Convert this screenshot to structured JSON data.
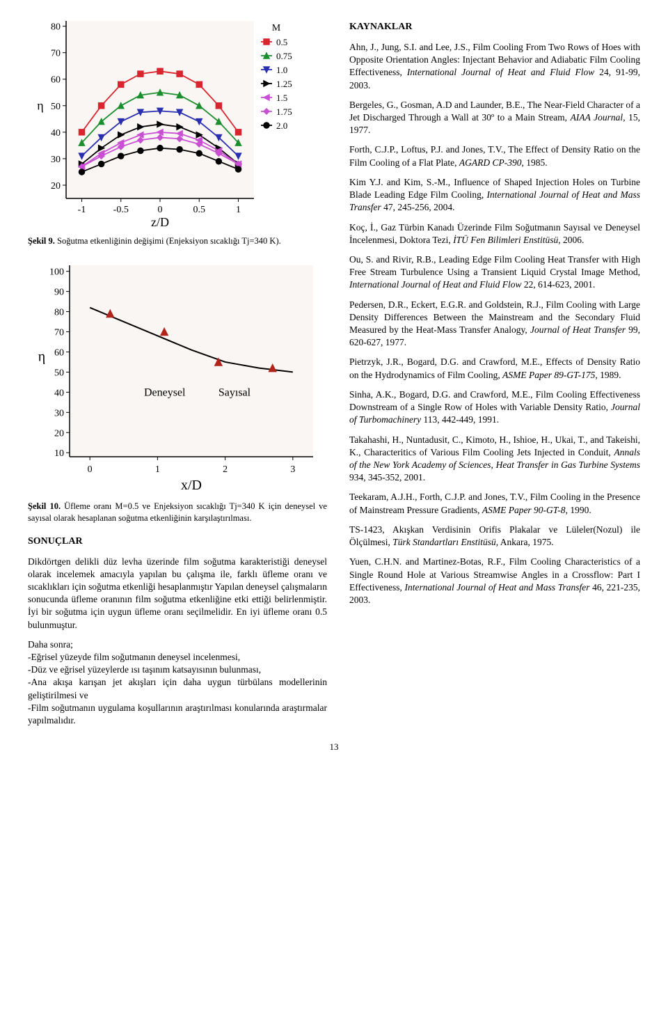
{
  "left": {
    "chart1": {
      "type": "line-multi",
      "xlabel": "z/D",
      "ylabel": "η",
      "xlim": [
        -1.2,
        1.2
      ],
      "ylim": [
        15,
        82
      ],
      "xticks": [
        -1,
        -0.5,
        0,
        0.5,
        1
      ],
      "yticks": [
        20,
        30,
        40,
        50,
        60,
        70,
        80
      ],
      "background_color": "#faf6f3",
      "axis_color": "#000000",
      "tick_color": "#000000",
      "plot_border_left": true,
      "plot_border_bottom": true,
      "label_fontsize": 18,
      "tick_fontsize": 14,
      "legend_title": "M",
      "legend_items": [
        {
          "label": "0.5",
          "color": "#d8252e",
          "marker": "square"
        },
        {
          "label": "0.75",
          "color": "#1b8f2f",
          "marker": "triangle-up"
        },
        {
          "label": "1.0",
          "color": "#2a2fb0",
          "marker": "triangle-down"
        },
        {
          "label": "1.25",
          "color": "#000000",
          "marker": "triangle-right"
        },
        {
          "label": "1.5",
          "color": "#c94fd3",
          "marker": "triangle-left"
        },
        {
          "label": "1.75",
          "color": "#c94fd3",
          "marker": "diamond"
        },
        {
          "label": "2.0",
          "color": "#000000",
          "marker": "circle"
        }
      ],
      "series": [
        {
          "name": "M0.5",
          "color": "#d8252e",
          "marker": "square",
          "x": [
            -1,
            -0.75,
            -0.5,
            -0.25,
            0,
            0.25,
            0.5,
            0.75,
            1
          ],
          "y": [
            40,
            50,
            58,
            62,
            63,
            62,
            58,
            50,
            40
          ]
        },
        {
          "name": "M0.75",
          "color": "#1b8f2f",
          "marker": "triangle-up",
          "x": [
            -1,
            -0.75,
            -0.5,
            -0.25,
            0,
            0.25,
            0.5,
            0.75,
            1
          ],
          "y": [
            36,
            44,
            50,
            54,
            55,
            54,
            50,
            44,
            36
          ]
        },
        {
          "name": "M1.0",
          "color": "#2a2fb0",
          "marker": "triangle-down",
          "x": [
            -1,
            -0.75,
            -0.5,
            -0.25,
            0,
            0.25,
            0.5,
            0.75,
            1
          ],
          "y": [
            31,
            38,
            44,
            47.5,
            48,
            47.5,
            44,
            38,
            31
          ]
        },
        {
          "name": "M1.25",
          "color": "#000000",
          "marker": "triangle-right",
          "x": [
            -1,
            -0.75,
            -0.5,
            -0.25,
            0,
            0.25,
            0.5,
            0.75,
            1
          ],
          "y": [
            28,
            34,
            39,
            42,
            43,
            42,
            39,
            34,
            28
          ]
        },
        {
          "name": "M1.5",
          "color": "#c94fd3",
          "marker": "triangle-left",
          "x": [
            -1,
            -0.75,
            -0.5,
            -0.25,
            0,
            0.25,
            0.5,
            0.75,
            1
          ],
          "y": [
            27,
            32,
            36,
            39,
            40,
            39.5,
            37,
            33,
            28
          ]
        },
        {
          "name": "M1.75",
          "color": "#c94fd3",
          "marker": "diamond",
          "x": [
            -1,
            -0.75,
            -0.5,
            -0.25,
            0,
            0.25,
            0.5,
            0.75,
            1
          ],
          "y": [
            27,
            31,
            34.5,
            37,
            38,
            37.5,
            35.5,
            32,
            28
          ]
        },
        {
          "name": "M2.0",
          "color": "#000000",
          "marker": "circle",
          "x": [
            -1,
            -0.75,
            -0.5,
            -0.25,
            0,
            0.25,
            0.5,
            0.75,
            1
          ],
          "y": [
            25,
            28,
            31,
            33,
            34,
            33.5,
            32,
            29,
            26
          ]
        }
      ]
    },
    "caption1_bold": "Şekil 9.",
    "caption1_rest": " Soğutma etkenliğinin değişimi (Enjeksiyon sıcaklığı Tj=340 K).",
    "chart2": {
      "type": "line",
      "xlabel": "x/D",
      "ylabel": "η",
      "xlim": [
        -0.3,
        3.3
      ],
      "ylim": [
        8,
        103
      ],
      "xticks": [
        0,
        1,
        2,
        3
      ],
      "yticks": [
        10,
        20,
        30,
        40,
        50,
        60,
        70,
        80,
        90,
        100
      ],
      "background_color": "#faf6f3",
      "axis_color": "#000000",
      "label_fontsize": 20,
      "tick_fontsize": 14,
      "label_deneysel": "Deneysel",
      "label_sayisal": "Sayısal",
      "series": [
        {
          "name": "Sayısal",
          "color": "#000000",
          "marker": null,
          "x": [
            0,
            0.5,
            1,
            1.5,
            2,
            2.5,
            3
          ],
          "y": [
            82,
            75,
            68,
            61,
            55,
            52,
            50
          ]
        },
        {
          "name": "Deneysel",
          "color": "#b0241b",
          "marker": "triangle-up",
          "line": false,
          "x": [
            0.3,
            1.1,
            1.9,
            2.7
          ],
          "y": [
            79,
            70,
            55,
            52
          ]
        }
      ]
    },
    "caption2_bold": "Şekil 10.",
    "caption2_rest": " Üfleme oranı M=0.5 ve Enjeksiyon sıcaklığı Tj=340 K için deneysel ve sayısal olarak hesaplanan soğutma etkenliğinin karşılaştırılması.",
    "sonuclar_title": "SONUÇLAR",
    "sonuclar_p1": "Dikdörtgen delikli düz levha üzerinde film soğutma karakteristiği deneysel olarak incelemek amacıyla yapılan bu çalışma ile, farklı üfleme oranı ve sıcaklıkları için soğutma etkenliği hesaplanmıştır Yapılan deneysel çalışmaların sonucunda üfleme oranının film soğutma etkenliğine etki ettiği belirlenmiştir. İyi bir soğutma için uygun üfleme oranı seçilmelidir. En iyi üfleme oranı 0.5 bulunmuştur.",
    "sonuclar_p2_lead": "Daha sonra;",
    "sonuclar_list": [
      "-Eğrisel yüzeyde film soğutmanın deneysel incelenmesi,",
      "-Düz ve eğrisel yüzeylerde ısı taşınım katsayısının bulunması,",
      "-Ana akışa karışan jet akışları için daha uygun türbülans modellerinin geliştirilmesi ve",
      "-Film soğutmanın uygulama koşullarının araştırılması konularında araştırmalar yapılmalıdır."
    ]
  },
  "right": {
    "kaynaklar_title": "KAYNAKLAR",
    "refs": [
      {
        "plain_a": "Ahn, J., Jung, S.I. and Lee, J.S., Film Cooling From Two Rows of Hoes with Opposite Orientation Angles: Injectant Behavior and Adiabatic Film Cooling Effectiveness, ",
        "italic": "International Journal of Heat and Fluid Flow",
        "plain_b": " 24, 91-99, 2003."
      },
      {
        "plain_a": "Bergeles, G., Gosman, A.D and Launder, B.E., The Near-Field Character of a Jet Discharged Through a Wall at 30º to a Main Stream, ",
        "italic": "AIAA Journal",
        "plain_b": ", 15, 1977."
      },
      {
        "plain_a": "Forth, C.J.P., Loftus, P.J. and Jones, T.V., The Effect of Density Ratio on the Film Cooling of a Flat Plate, ",
        "italic": "AGARD CP-390",
        "plain_b": ", 1985."
      },
      {
        "plain_a": "Kim Y.J. and Kim, S.-M., Influence of Shaped Injection Holes on Turbine Blade Leading Edge Film Cooling, ",
        "italic": "International Journal of Heat and Mass Transfer",
        "plain_b": " 47, 245-256, 2004."
      },
      {
        "plain_a": "Koç, İ., Gaz Türbin Kanadı Üzerinde Film Soğutmanın Sayısal ve Deneysel İncelenmesi, Doktora Tezi, ",
        "italic": "İTÜ Fen Bilimleri Enstitüsü",
        "plain_b": ", 2006."
      },
      {
        "plain_a": "Ou, S. and Rivir, R.B., Leading Edge Film Cooling Heat Transfer with High Free Stream Turbulence Using a Transient Liquid Crystal Image Method, ",
        "italic": "International Journal of Heat and Fluid Flow",
        "plain_b": " 22, 614-623, 2001."
      },
      {
        "plain_a": "Pedersen, D.R., Eckert, E.G.R. and Goldstein, R.J., Film Cooling with Large Density Differences Between the Mainstream and the Secondary Fluid Measured by the Heat-Mass Transfer Analogy, ",
        "italic": "Journal of Heat Transfer",
        "plain_b": " 99, 620-627, 1977."
      },
      {
        "plain_a": "Pietrzyk, J.R., Bogard, D.G. and Crawford, M.E., Effects of Density Ratio on the Hydrodynamics of Film Cooling, ",
        "italic": "ASME Paper 89-GT-175",
        "plain_b": ", 1989."
      },
      {
        "plain_a": "Sinha, A.K., Bogard, D.G. and Crawford, M.E., Film Cooling Effectiveness Downstream of a Single Row of Holes with Variable Density Ratio, ",
        "italic": "Journal of Turbomachinery",
        "plain_b": " 113, 442-449, 1991."
      },
      {
        "plain_a": "Takahashi, H., Nuntadusit, C., Kimoto, H., Ishioe, H., Ukai, T., and Takeishi, K., Characteritics of Various Film Cooling Jets Injected in Conduit, ",
        "italic": "Annals of the New York Academy of Sciences, Heat Transfer in Gas Turbine Systems",
        "plain_b": " 934, 345-352, 2001."
      },
      {
        "plain_a": "Teekaram, A.J.H., Forth, C.J.P. and Jones, T.V., Film Cooling in the Presence of Mainstream Pressure Gradients, ",
        "italic": "ASME Paper 90-GT-8",
        "plain_b": ", 1990."
      },
      {
        "plain_a": "TS-1423, Akışkan Verdisinin Orifis Plakalar ve Lüleler(Nozul) ile Ölçülmesi, ",
        "italic": "Türk Standartları Enstitüsü",
        "plain_b": ", Ankara, 1975."
      },
      {
        "plain_a": "Yuen, C.H.N. and Martinez-Botas, R.F., Film Cooling Characteristics of a Single Round Hole at Various Streamwise Angles in a Crossflow: Part I Effectiveness, ",
        "italic": "International Journal of Heat and Mass Transfer",
        "plain_b": " 46, 221-235, 2003."
      }
    ]
  },
  "page_number": "13"
}
